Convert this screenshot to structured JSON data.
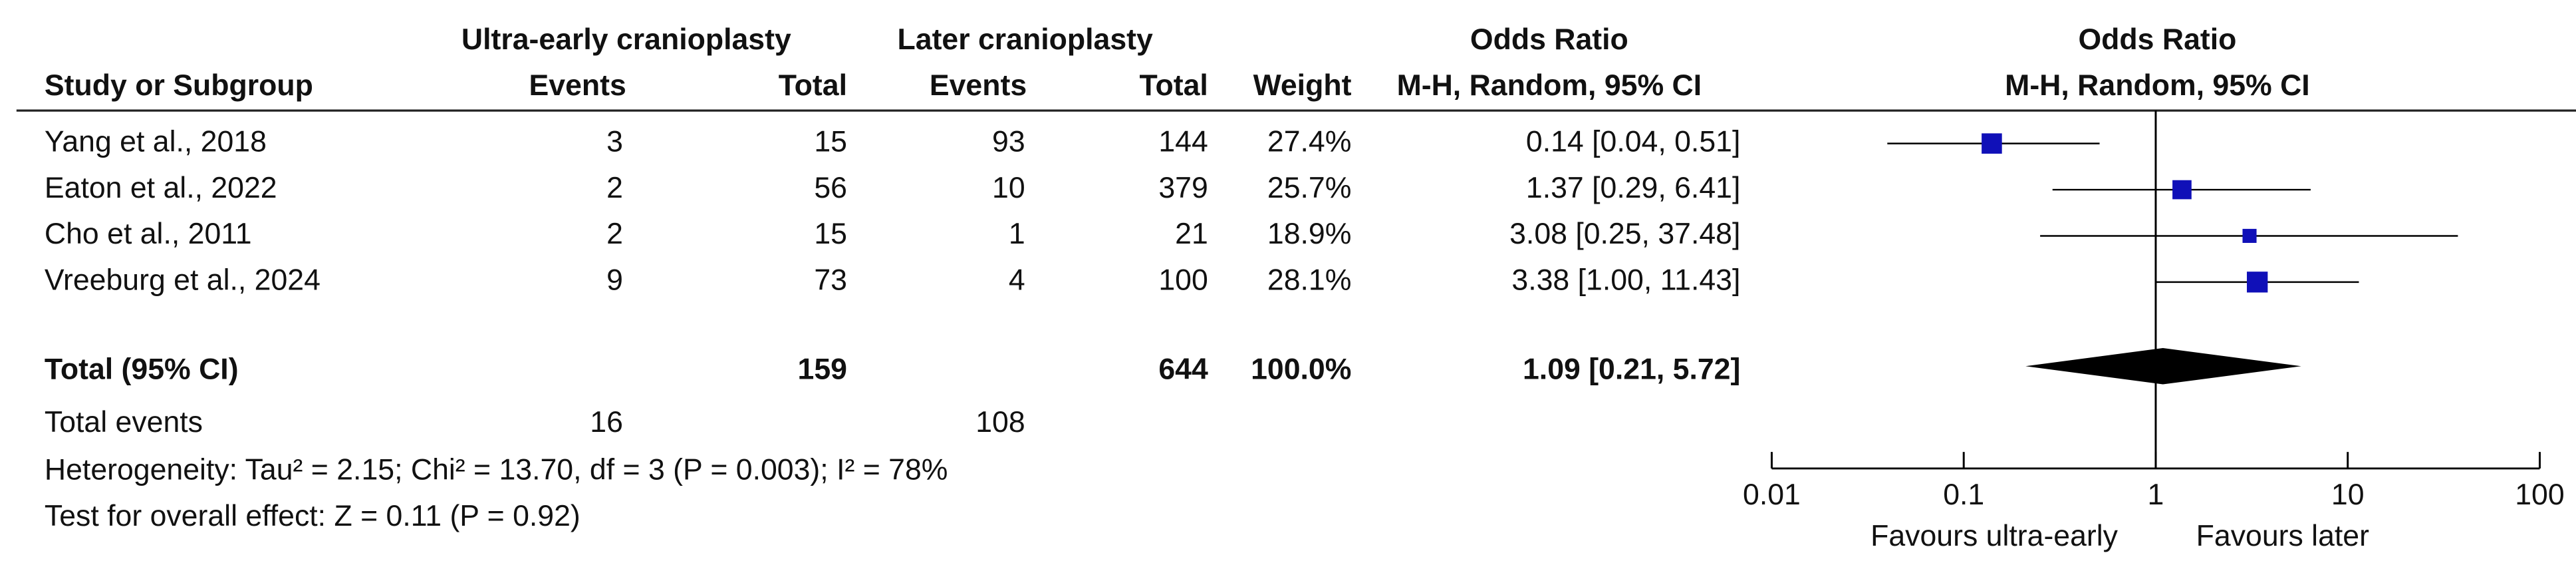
{
  "chart_data": {
    "type": "forest",
    "group_headers": {
      "experimental": "Ultra-early cranioplasty",
      "control": "Later cranioplasty",
      "or_table": "Odds Ratio",
      "or_plot": "Odds Ratio"
    },
    "columns": {
      "study": "Study or Subgroup",
      "events_exp": "Events",
      "total_exp": "Total",
      "events_ctrl": "Events",
      "total_ctrl": "Total",
      "weight": "Weight",
      "method_table": "M-H, Random, 95% CI",
      "method_plot": "M-H, Random, 95% CI"
    },
    "studies": [
      {
        "name": "Yang et al., 2018",
        "events_exp": 3,
        "total_exp": 15,
        "events_ctrl": 93,
        "total_ctrl": 144,
        "weight": {
          "value": 27.4,
          "label": "27.4%"
        },
        "or": {
          "value": 0.14,
          "lo": 0.04,
          "hi": 0.51,
          "label": "0.14 [0.04, 0.51]"
        }
      },
      {
        "name": "Eaton et al., 2022",
        "events_exp": 2,
        "total_exp": 56,
        "events_ctrl": 10,
        "total_ctrl": 379,
        "weight": {
          "value": 25.7,
          "label": "25.7%"
        },
        "or": {
          "value": 1.37,
          "lo": 0.29,
          "hi": 6.41,
          "label": "1.37 [0.29, 6.41]"
        }
      },
      {
        "name": "Cho et al., 2011",
        "events_exp": 2,
        "total_exp": 15,
        "events_ctrl": 1,
        "total_ctrl": 21,
        "weight": {
          "value": 18.9,
          "label": "18.9%"
        },
        "or": {
          "value": 3.08,
          "lo": 0.25,
          "hi": 37.48,
          "label": "3.08 [0.25, 37.48]"
        }
      },
      {
        "name": "Vreeburg et al., 2024",
        "events_exp": 9,
        "total_exp": 73,
        "events_ctrl": 4,
        "total_ctrl": 100,
        "weight": {
          "value": 28.1,
          "label": "28.1%"
        },
        "or": {
          "value": 3.38,
          "lo": 1.0,
          "hi": 11.43,
          "label": "3.38 [1.00, 11.43]"
        }
      }
    ],
    "total": {
      "name": "Total (95% CI)",
      "total_exp": 159,
      "total_ctrl": 644,
      "weight": {
        "value": 100.0,
        "label": "100.0%"
      },
      "or": {
        "value": 1.09,
        "lo": 0.21,
        "hi": 5.72,
        "label": "1.09 [0.21, 5.72]"
      }
    },
    "total_events": {
      "label": "Total events",
      "events_exp": 16,
      "events_ctrl": 108
    },
    "heterogeneity": "Heterogeneity: Tau² = 2.15; Chi² = 13.70, df = 3 (P = 0.003); I² = 78%",
    "overall_effect": "Test for overall effect: Z = 0.11 (P = 0.92)",
    "x_scale": "log",
    "xlim": [
      0.01,
      100
    ],
    "xticks": [
      0.01,
      0.1,
      1,
      10,
      100
    ],
    "favours_left": "Favours ultra-early",
    "favours_right": "Favours later",
    "marker_color": "#1010b8",
    "diamond_color": "#000000"
  }
}
